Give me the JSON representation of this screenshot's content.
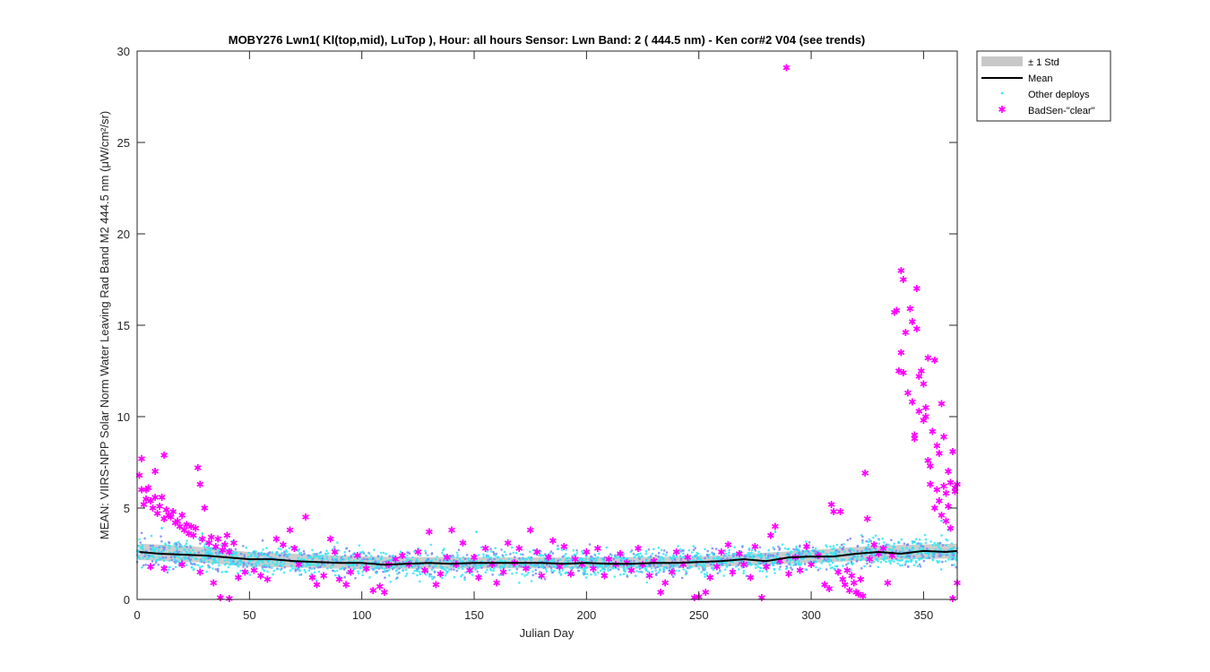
{
  "chart_data": {
    "type": "scatter",
    "title": "MOBY276   Lwn1( Kl(top,mid), LuTop ),   Hour: all hours  Sensor: Lwn Band: 2 ( 444.5 nm)  - Ken cor#2 V04 (see trends)",
    "xlabel": "Julian Day",
    "ylabel": "MEAN: VIIRS-NPP Solar Norm Water Leaving Rad Band M2 444.5 nm (μW/cm²/sr)",
    "xlim": [
      0,
      365
    ],
    "ylim": [
      0,
      30
    ],
    "x_ticks": [
      "0",
      "50",
      "100",
      "150",
      "200",
      "250",
      "300",
      "350"
    ],
    "y_ticks": [
      "0",
      "5",
      "10",
      "15",
      "20",
      "25",
      "30"
    ],
    "grid": false,
    "legend_position": "outside top-right",
    "colors": {
      "std_band": "#c8c8c8",
      "mean": "#000000",
      "other_deploys": "#33e6f2",
      "other_deploys_dark": "#7a86f0",
      "badsen": "#ff00ff"
    },
    "legend": [
      {
        "label": "± 1 Std",
        "kind": "band"
      },
      {
        "label": "Mean",
        "kind": "line"
      },
      {
        "label": "Other deploys",
        "kind": "dot"
      },
      {
        "label": "BadSen-\"clear\"",
        "kind": "star"
      }
    ],
    "series": [
      {
        "name": "Mean",
        "kind": "line",
        "x": [
          1,
          10,
          20,
          30,
          40,
          50,
          60,
          70,
          80,
          90,
          100,
          110,
          120,
          130,
          140,
          150,
          160,
          170,
          180,
          190,
          200,
          210,
          220,
          230,
          240,
          250,
          260,
          270,
          280,
          290,
          300,
          310,
          320,
          330,
          340,
          350,
          360,
          365
        ],
        "y": [
          2.6,
          2.5,
          2.45,
          2.4,
          2.3,
          2.2,
          2.2,
          2.1,
          2.05,
          2.0,
          2.0,
          1.9,
          1.95,
          2.0,
          1.95,
          2.0,
          2.0,
          2.0,
          2.0,
          1.95,
          2.0,
          1.95,
          1.95,
          2.0,
          2.0,
          2.05,
          2.1,
          2.2,
          2.1,
          2.3,
          2.35,
          2.35,
          2.5,
          2.6,
          2.5,
          2.65,
          2.6,
          2.65
        ]
      },
      {
        "name": "± 1 Std",
        "kind": "band",
        "x": [
          1,
          25,
          50,
          100,
          150,
          200,
          250,
          300,
          330,
          365
        ],
        "lower": [
          2.15,
          2.05,
          1.8,
          1.65,
          1.7,
          1.7,
          1.75,
          2.0,
          2.15,
          2.25
        ],
        "upper": [
          3.05,
          2.9,
          2.6,
          2.35,
          2.3,
          2.3,
          2.35,
          2.7,
          2.95,
          3.05
        ]
      },
      {
        "name": "BadSen-\"clear\"",
        "kind": "star",
        "points": [
          [
            1,
            6.8
          ],
          [
            2,
            7.7
          ],
          [
            3,
            5.2
          ],
          [
            4,
            5.5
          ],
          [
            5,
            6.1
          ],
          [
            6,
            5.4
          ],
          [
            7,
            5.0
          ],
          [
            8,
            5.6
          ],
          [
            9,
            4.7
          ],
          [
            10,
            5.1
          ],
          [
            11,
            5.6
          ],
          [
            12,
            4.4
          ],
          [
            13,
            4.9
          ],
          [
            14,
            4.6
          ],
          [
            15,
            4.5
          ],
          [
            16,
            4.8
          ],
          [
            17,
            4.2
          ],
          [
            18,
            4.3
          ],
          [
            19,
            4.0
          ],
          [
            20,
            4.6
          ],
          [
            21,
            3.8
          ],
          [
            22,
            4.1
          ],
          [
            23,
            3.6
          ],
          [
            24,
            4.0
          ],
          [
            25,
            3.5
          ],
          [
            26,
            3.9
          ],
          [
            27,
            7.2
          ],
          [
            28,
            6.3
          ],
          [
            29,
            3.3
          ],
          [
            30,
            5.0
          ],
          [
            32,
            3.1
          ],
          [
            33,
            3.4
          ],
          [
            35,
            2.9
          ],
          [
            36,
            3.3
          ],
          [
            38,
            2.7
          ],
          [
            39,
            3.0
          ],
          [
            40,
            3.5
          ],
          [
            41,
            2.6
          ],
          [
            43,
            3.1
          ],
          [
            2,
            6.0
          ],
          [
            4,
            6.0
          ],
          [
            8,
            7.0
          ],
          [
            12,
            7.9
          ],
          [
            6,
            1.8
          ],
          [
            12,
            1.7
          ],
          [
            20,
            1.9
          ],
          [
            28,
            1.5
          ],
          [
            34,
            0.9
          ],
          [
            37,
            0.1
          ],
          [
            41,
            0.05
          ],
          [
            45,
            1.2
          ],
          [
            48,
            1.5
          ],
          [
            52,
            1.6
          ],
          [
            55,
            1.3
          ],
          [
            58,
            1.1
          ],
          [
            62,
            3.3
          ],
          [
            65,
            3.0
          ],
          [
            68,
            3.8
          ],
          [
            70,
            2.8
          ],
          [
            72,
            1.9
          ],
          [
            75,
            4.5
          ],
          [
            78,
            1.2
          ],
          [
            80,
            0.8
          ],
          [
            83,
            1.3
          ],
          [
            86,
            3.3
          ],
          [
            88,
            2.6
          ],
          [
            90,
            1.1
          ],
          [
            93,
            0.8
          ],
          [
            95,
            1.5
          ],
          [
            98,
            2.4
          ],
          [
            102,
            1.7
          ],
          [
            105,
            0.5
          ],
          [
            108,
            0.7
          ],
          [
            110,
            0.4
          ],
          [
            112,
            1.9
          ],
          [
            115,
            2.2
          ],
          [
            118,
            2.4
          ],
          [
            121,
            1.9
          ],
          [
            125,
            2.6
          ],
          [
            128,
            1.6
          ],
          [
            130,
            3.7
          ],
          [
            133,
            0.8
          ],
          [
            135,
            1.4
          ],
          [
            138,
            2.3
          ],
          [
            140,
            3.8
          ],
          [
            142,
            1.9
          ],
          [
            145,
            3.1
          ],
          [
            148,
            1.6
          ],
          [
            150,
            2.3
          ],
          [
            152,
            1.2
          ],
          [
            155,
            2.8
          ],
          [
            158,
            1.9
          ],
          [
            160,
            0.9
          ],
          [
            163,
            1.5
          ],
          [
            165,
            3.1
          ],
          [
            168,
            2.0
          ],
          [
            170,
            2.8
          ],
          [
            173,
            1.7
          ],
          [
            175,
            3.8
          ],
          [
            178,
            2.6
          ],
          [
            180,
            1.3
          ],
          [
            183,
            2.3
          ],
          [
            185,
            3.2
          ],
          [
            188,
            1.8
          ],
          [
            190,
            2.9
          ],
          [
            193,
            1.4
          ],
          [
            195,
            2.2
          ],
          [
            198,
            1.9
          ],
          [
            200,
            2.6
          ],
          [
            203,
            1.7
          ],
          [
            205,
            2.8
          ],
          [
            208,
            1.3
          ],
          [
            210,
            2.2
          ],
          [
            213,
            1.9
          ],
          [
            215,
            2.5
          ],
          [
            218,
            2.0
          ],
          [
            220,
            1.6
          ],
          [
            223,
            2.8
          ],
          [
            225,
            1.9
          ],
          [
            228,
            1.3
          ],
          [
            230,
            2.1
          ],
          [
            233,
            0.4
          ],
          [
            235,
            0.9
          ],
          [
            238,
            1.5
          ],
          [
            240,
            2.6
          ],
          [
            243,
            1.9
          ],
          [
            245,
            2.3
          ],
          [
            248,
            0.1
          ],
          [
            250,
            0.15
          ],
          [
            253,
            0.4
          ],
          [
            255,
            1.2
          ],
          [
            258,
            1.8
          ],
          [
            260,
            2.6
          ],
          [
            263,
            3.0
          ],
          [
            265,
            1.5
          ],
          [
            268,
            2.5
          ],
          [
            270,
            1.9
          ],
          [
            273,
            1.2
          ],
          [
            275,
            2.9
          ],
          [
            278,
            0.1
          ],
          [
            280,
            1.8
          ],
          [
            282,
            3.5
          ],
          [
            284,
            4.0
          ],
          [
            286,
            2.1
          ],
          [
            289,
            29.1
          ],
          [
            290,
            1.4
          ],
          [
            293,
            2.3
          ],
          [
            295,
            1.6
          ],
          [
            298,
            2.9
          ],
          [
            300,
            1.9
          ],
          [
            303,
            2.4
          ],
          [
            306,
            0.8
          ],
          [
            308,
            0.6
          ],
          [
            309,
            5.2
          ],
          [
            310,
            4.8
          ],
          [
            312,
            1.5
          ],
          [
            313,
            4.8
          ],
          [
            314,
            1.1
          ],
          [
            315,
            0.8
          ],
          [
            316,
            1.6
          ],
          [
            317,
            0.5
          ],
          [
            318,
            1.3
          ],
          [
            319,
            0.9
          ],
          [
            320,
            0.4
          ],
          [
            321,
            0.3
          ],
          [
            322,
            1.1
          ],
          [
            323,
            0.2
          ],
          [
            324,
            6.9
          ],
          [
            325,
            4.4
          ],
          [
            326,
            2.2
          ],
          [
            328,
            3.0
          ],
          [
            330,
            2.5
          ],
          [
            332,
            2.8
          ],
          [
            334,
            0.9
          ],
          [
            336,
            2.4
          ],
          [
            337,
            15.7
          ],
          [
            338,
            15.8
          ],
          [
            339,
            12.5
          ],
          [
            340,
            18.0
          ],
          [
            340,
            13.5
          ],
          [
            341,
            17.5
          ],
          [
            341,
            12.4
          ],
          [
            342,
            14.6
          ],
          [
            343,
            11.3
          ],
          [
            344,
            15.9
          ],
          [
            345,
            15.2
          ],
          [
            345,
            10.8
          ],
          [
            346,
            9.0
          ],
          [
            346,
            8.8
          ],
          [
            347,
            17.0
          ],
          [
            347,
            14.8
          ],
          [
            348,
            12.2
          ],
          [
            348,
            10.3
          ],
          [
            349,
            12.5
          ],
          [
            350,
            11.8
          ],
          [
            350,
            9.8
          ],
          [
            351,
            10.0
          ],
          [
            351,
            10.5
          ],
          [
            352,
            7.6
          ],
          [
            352,
            13.2
          ],
          [
            353,
            6.3
          ],
          [
            353,
            7.3
          ],
          [
            354,
            9.2
          ],
          [
            355,
            13.1
          ],
          [
            355,
            5.0
          ],
          [
            356,
            6.0
          ],
          [
            356,
            8.4
          ],
          [
            357,
            5.4
          ],
          [
            357,
            8.0
          ],
          [
            358,
            10.7
          ],
          [
            358,
            4.6
          ],
          [
            359,
            6.2
          ],
          [
            359,
            8.9
          ],
          [
            360,
            5.8
          ],
          [
            360,
            4.3
          ],
          [
            361,
            7.0
          ],
          [
            361,
            5.1
          ],
          [
            362,
            6.4
          ],
          [
            362,
            3.9
          ],
          [
            363,
            8.1
          ],
          [
            363,
            0.05
          ],
          [
            364,
            6.1
          ],
          [
            364,
            5.9
          ],
          [
            365,
            6.3
          ],
          [
            365,
            0.9
          ]
        ]
      },
      {
        "name": "Other deploys",
        "kind": "dot",
        "note_values": "dense cloud of points around the mean, roughly 1.5 to 3.5, spanning days 0 to 365; occasional outliers up to about 4.3",
        "x_range": [
          0,
          365
        ],
        "y_center": "follows Mean",
        "y_spread": 0.7,
        "outliers": [
          [
            11,
            3.9
          ],
          [
            29,
            3.6
          ],
          [
            151,
            3.7
          ],
          [
            284,
            3.7
          ],
          [
            358,
            4.3
          ],
          [
            361,
            3.8
          ]
        ]
      }
    ]
  }
}
